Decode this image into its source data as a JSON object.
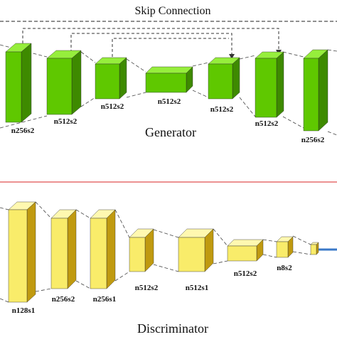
{
  "generator": {
    "skip_title": "Skip Connection",
    "caption": "Generator",
    "face_color": "#5fc800",
    "top_color": "#96ee3c",
    "side_color": "#3e8a00",
    "blocks": [
      {
        "label": "n256s2"
      },
      {
        "label": "n512s2"
      },
      {
        "label": "n512s2"
      },
      {
        "label": "n512s2"
      },
      {
        "label": "n512s2"
      },
      {
        "label": "n512s2"
      },
      {
        "label": "n256s2"
      }
    ]
  },
  "discriminator": {
    "caption": "Discriminator",
    "face_color": "#f9ec6a",
    "top_color": "#fff8b0",
    "side_color": "#c09a10",
    "output_color": "#3a78c8",
    "blocks": [
      {
        "label": "n128s1"
      },
      {
        "label": "n256s2"
      },
      {
        "label": "n256s1"
      },
      {
        "label": "n512s2"
      },
      {
        "label": "n512s1"
      },
      {
        "label": "n512s2"
      },
      {
        "label": "n8s2"
      },
      {
        "label": ""
      }
    ]
  },
  "separator_color": "#e05050"
}
